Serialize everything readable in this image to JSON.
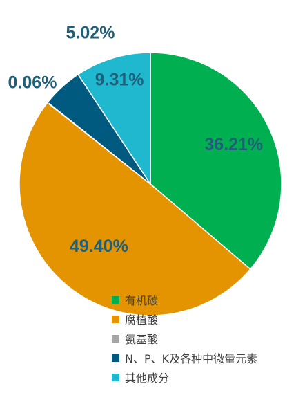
{
  "chart_data": {
    "type": "pie",
    "title": "",
    "start_angle_deg": 0,
    "direction": "clockwise",
    "slices": [
      {
        "label": "有机碳",
        "value": 36.21,
        "display": "36.21%",
        "color": "#00b050",
        "label_color": "#1f5f7a"
      },
      {
        "label": "腐植酸",
        "value": 49.4,
        "display": "49.40%",
        "color": "#e39400",
        "label_color": "#1f5f7a"
      },
      {
        "label": "氨基酸",
        "value": 0.06,
        "display": "0.06%",
        "color": "#a6a6a6",
        "label_color": "#1f5f7a"
      },
      {
        "label": "N、P、K及各种中微量元素",
        "value": 5.02,
        "display": "5.02%",
        "color": "#005a80",
        "label_color": "#1f5f7a"
      },
      {
        "label": "其他成分",
        "value": 9.31,
        "display": "9.31%",
        "color": "#1fb8cf",
        "label_color": "#1f5f7a"
      }
    ],
    "legend_position": "bottom-center"
  }
}
